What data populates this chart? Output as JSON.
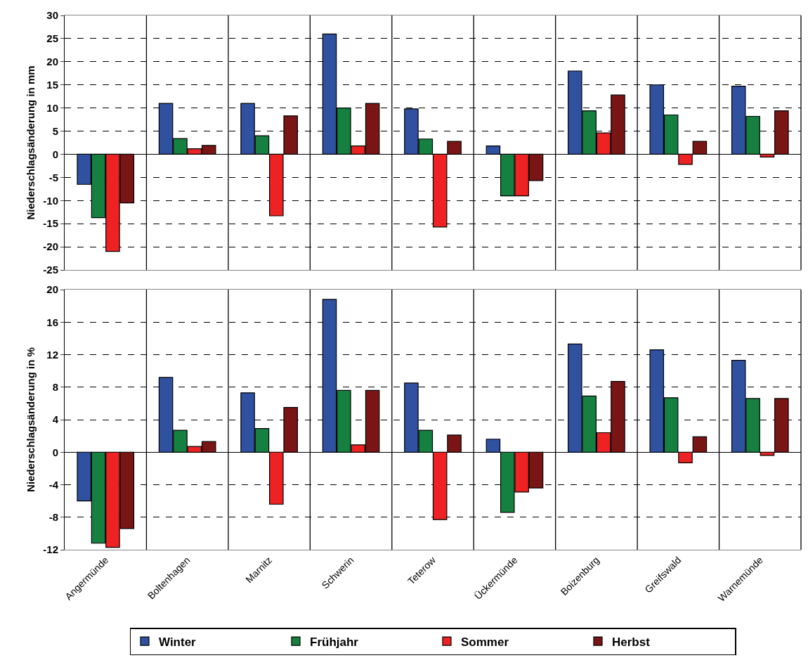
{
  "chart_data": [
    {
      "type": "bar",
      "ylabel": "Niederschlagsänderung in mm",
      "categories": [
        null,
        null,
        null,
        null,
        null,
        null,
        null,
        null,
        null
      ],
      "series": [
        {
          "color": "#3050a0",
          "values": [
            -6.5,
            11,
            11,
            26,
            9.8,
            1.8,
            18,
            15,
            14.7
          ]
        },
        {
          "color": "#158040",
          "values": [
            -13.7,
            3.4,
            4,
            10,
            3.3,
            -9,
            9.4,
            8.5,
            8.2
          ]
        },
        {
          "color": "#ee2222",
          "values": [
            -21,
            1.2,
            -13.3,
            1.8,
            -15.7,
            -9,
            4.6,
            -2.2,
            -0.6
          ]
        },
        {
          "color": "#7a1515",
          "values": [
            -10.5,
            1.9,
            8.3,
            11,
            2.8,
            -5.7,
            12.8,
            2.8,
            9.4
          ]
        }
      ],
      "ylim": [
        -25,
        30
      ],
      "yticks": [
        -25,
        -20,
        -15,
        -10,
        -5,
        0,
        5,
        10,
        15,
        20,
        25,
        30
      ],
      "grid": true,
      "legend": false,
      "tick_labels": "y"
    },
    {
      "type": "bar",
      "ylabel": "Niederschlagsänderung in %",
      "categories": [
        "Angermünde",
        "Boltenhagen",
        "Marnitz",
        "Schwerin",
        "Teterow",
        "Ückermünde",
        "Boizenburg",
        "Greifswald",
        "Warnemünde"
      ],
      "series": [
        {
          "name": "Winter",
          "color": "#3050a0",
          "values": [
            -6,
            9.2,
            7.3,
            18.8,
            8.5,
            1.6,
            13.3,
            12.6,
            11.3
          ]
        },
        {
          "name": "Frühjahr",
          "color": "#158040",
          "values": [
            -11.2,
            2.7,
            2.9,
            7.6,
            2.7,
            -7.4,
            6.9,
            6.7,
            6.6
          ]
        },
        {
          "name": "Sommer",
          "color": "#ee2222",
          "values": [
            -11.7,
            0.7,
            -6.4,
            0.9,
            -8.3,
            -4.9,
            2.4,
            -1.3,
            -0.4
          ]
        },
        {
          "name": "Herbst",
          "color": "#7a1515",
          "values": [
            -9.4,
            1.3,
            5.5,
            7.6,
            2.1,
            -4.4,
            8.7,
            1.9,
            6.6
          ]
        }
      ],
      "ylim": [
        -12,
        20
      ],
      "yticks": [
        -12,
        -8,
        -4,
        0,
        4,
        8,
        12,
        16,
        20
      ],
      "grid": true,
      "legend": "bottom"
    }
  ]
}
